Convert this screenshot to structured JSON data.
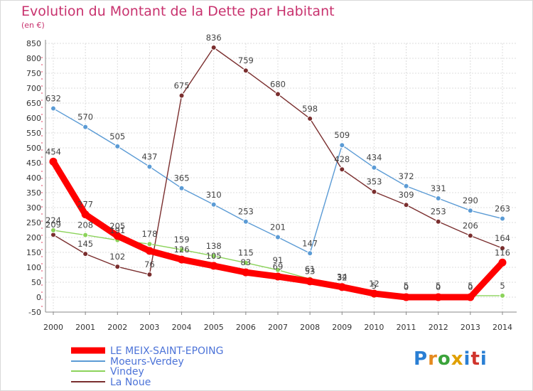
{
  "header": {
    "title": "Evolution du Montant de la Dette par Habitant",
    "unit": "(en €)"
  },
  "logo": {
    "text": "Proxiti",
    "colors": [
      "#2a7fd4",
      "#e58a1f",
      "#3ba33b",
      "#e0a000",
      "#2a7fd4",
      "#d0342c",
      "#2a7fd4"
    ]
  },
  "chart_data": {
    "type": "line",
    "x": [
      "2000",
      "2001",
      "2002",
      "2003",
      "2004",
      "2005",
      "2006",
      "2007",
      "2008",
      "2009",
      "2010",
      "2011",
      "2012",
      "2013",
      "2014"
    ],
    "ylim": [
      -50,
      850
    ],
    "yticks": [
      -50,
      0,
      50,
      100,
      150,
      200,
      250,
      300,
      350,
      400,
      450,
      500,
      550,
      600,
      650,
      700,
      750,
      800,
      850
    ],
    "grid": true,
    "legend_position": "bottom-left",
    "series": [
      {
        "name": "LE MEIX-SAINT-EPOING",
        "color": "#ff0000",
        "values": [
          454,
          277,
          205,
          155,
          126,
          105,
          83,
          69,
          53,
          34,
          12,
          0,
          0,
          0,
          116
        ],
        "labels": [
          "454",
          "277",
          "205",
          "",
          "126",
          "105",
          "83",
          "69",
          "53",
          "34",
          "12",
          "0",
          "0",
          "0",
          "116"
        ]
      },
      {
        "name": "Moeurs-Verdey",
        "color": "#5b9bd5",
        "values": [
          632,
          570,
          505,
          437,
          365,
          310,
          253,
          201,
          147,
          509,
          434,
          372,
          331,
          290,
          263
        ],
        "labels": [
          "632",
          "570",
          "505",
          "437",
          "365",
          "310",
          "253",
          "201",
          "147",
          "509",
          "434",
          "372",
          "331",
          "290",
          "263"
        ]
      },
      {
        "name": "Vindey",
        "color": "#8cd35b",
        "values": [
          224,
          208,
          191,
          178,
          159,
          138,
          115,
          91,
          61,
          32,
          5,
          5,
          5,
          5,
          5
        ],
        "labels": [
          "224",
          "208",
          "191",
          "178",
          "159",
          "138",
          "115",
          "91",
          "61",
          "32",
          "5",
          "5",
          "5",
          "5",
          "5"
        ]
      },
      {
        "name": "La Noue",
        "color": "#7a2e2e",
        "values": [
          209,
          145,
          102,
          76,
          675,
          836,
          759,
          680,
          598,
          428,
          353,
          309,
          253,
          206,
          164
        ],
        "labels": [
          "209",
          "145",
          "102",
          "76",
          "675",
          "836",
          "759",
          "680",
          "598",
          "428",
          "353",
          "309",
          "253",
          "206",
          "164"
        ]
      }
    ]
  }
}
